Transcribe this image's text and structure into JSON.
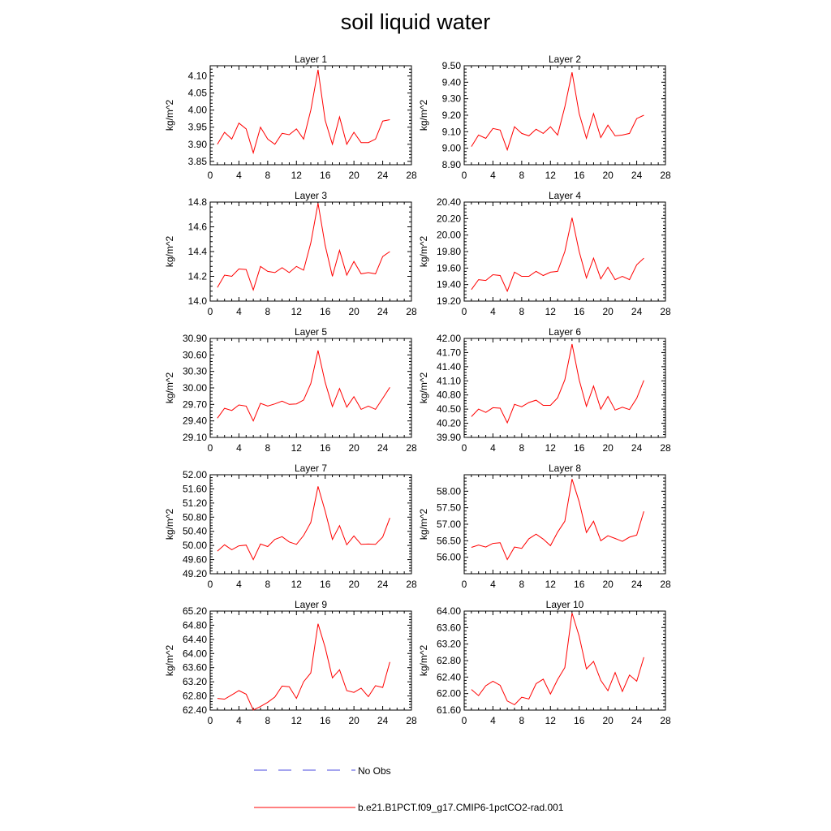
{
  "title": "soil liquid water",
  "colors": {
    "model": "#ff0000",
    "obs": "#4a4adf",
    "axis": "#000000"
  },
  "legend": {
    "obs_label": "No Obs",
    "model_label": "b.e21.B1PCT.f09_g17.CMIP6-1pctCO2-rad.001"
  },
  "chart_data": [
    {
      "type": "line",
      "title": "Layer 1",
      "ylabel": "kg/m^2",
      "xlim": [
        0,
        28
      ],
      "xticks": [
        0,
        4,
        8,
        12,
        16,
        20,
        24,
        28
      ],
      "ylim": [
        3.84,
        4.13
      ],
      "yticks": [
        "3.85",
        "3.90",
        "3.95",
        "4.00",
        "4.05",
        "4.10"
      ],
      "series": [
        {
          "x": [
            1,
            2,
            3,
            4,
            5,
            6,
            7,
            8,
            9,
            10,
            11,
            12,
            13,
            14,
            15,
            16,
            17,
            18,
            19,
            20,
            21,
            22,
            23,
            24,
            25
          ],
          "values": [
            3.9,
            3.935,
            3.915,
            3.962,
            3.945,
            3.875,
            3.95,
            3.915,
            3.9,
            3.932,
            3.928,
            3.945,
            3.915,
            4.0,
            4.118,
            3.97,
            3.9,
            3.98,
            3.9,
            3.935,
            3.905,
            3.905,
            3.915,
            3.968,
            3.972
          ]
        }
      ]
    },
    {
      "type": "line",
      "title": "Layer 2",
      "ylabel": "kg/m^2",
      "xlim": [
        0,
        28
      ],
      "xticks": [
        0,
        4,
        8,
        12,
        16,
        20,
        24,
        28
      ],
      "ylim": [
        8.9,
        9.5
      ],
      "yticks": [
        "8.90",
        "9.00",
        "9.10",
        "9.20",
        "9.30",
        "9.40",
        "9.50"
      ],
      "series": [
        {
          "x": [
            1,
            2,
            3,
            4,
            5,
            6,
            7,
            8,
            9,
            10,
            11,
            12,
            13,
            14,
            15,
            16,
            17,
            18,
            19,
            20,
            21,
            22,
            23,
            24,
            25
          ],
          "values": [
            9.01,
            9.08,
            9.06,
            9.12,
            9.11,
            8.99,
            9.13,
            9.09,
            9.075,
            9.115,
            9.09,
            9.13,
            9.08,
            9.25,
            9.46,
            9.21,
            9.06,
            9.21,
            9.065,
            9.14,
            9.075,
            9.08,
            9.09,
            9.18,
            9.2
          ]
        }
      ]
    },
    {
      "type": "line",
      "title": "Layer 3",
      "ylabel": "kg/m^2",
      "xlim": [
        0,
        28
      ],
      "xticks": [
        0,
        4,
        8,
        12,
        16,
        20,
        24,
        28
      ],
      "ylim": [
        14.0,
        14.8
      ],
      "yticks": [
        "14.0",
        "14.2",
        "14.4",
        "14.6",
        "14.8"
      ],
      "series": [
        {
          "x": [
            1,
            2,
            3,
            4,
            5,
            6,
            7,
            8,
            9,
            10,
            11,
            12,
            13,
            14,
            15,
            16,
            17,
            18,
            19,
            20,
            21,
            22,
            23,
            24,
            25
          ],
          "values": [
            14.11,
            14.21,
            14.2,
            14.26,
            14.255,
            14.09,
            14.28,
            14.24,
            14.23,
            14.27,
            14.23,
            14.28,
            14.25,
            14.47,
            14.79,
            14.45,
            14.2,
            14.41,
            14.21,
            14.32,
            14.22,
            14.23,
            14.22,
            14.36,
            14.4
          ]
        }
      ]
    },
    {
      "type": "line",
      "title": "Layer 4",
      "ylabel": "kg/m^2",
      "xlim": [
        0,
        28
      ],
      "xticks": [
        0,
        4,
        8,
        12,
        16,
        20,
        24,
        28
      ],
      "ylim": [
        19.2,
        20.4
      ],
      "yticks": [
        "19.20",
        "19.40",
        "19.60",
        "19.80",
        "20.00",
        "20.20",
        "20.40"
      ],
      "series": [
        {
          "x": [
            1,
            2,
            3,
            4,
            5,
            6,
            7,
            8,
            9,
            10,
            11,
            12,
            13,
            14,
            15,
            16,
            17,
            18,
            19,
            20,
            21,
            22,
            23,
            24,
            25
          ],
          "values": [
            19.34,
            19.46,
            19.45,
            19.52,
            19.51,
            19.32,
            19.55,
            19.5,
            19.5,
            19.56,
            19.51,
            19.55,
            19.56,
            19.8,
            20.21,
            19.8,
            19.48,
            19.72,
            19.47,
            19.61,
            19.46,
            19.5,
            19.46,
            19.64,
            19.72
          ]
        }
      ]
    },
    {
      "type": "line",
      "title": "Layer 5",
      "ylabel": "kg/m^2",
      "xlim": [
        0,
        28
      ],
      "xticks": [
        0,
        4,
        8,
        12,
        16,
        20,
        24,
        28
      ],
      "ylim": [
        29.1,
        30.9
      ],
      "yticks": [
        "29.10",
        "29.40",
        "29.70",
        "30.00",
        "30.30",
        "30.60",
        "30.90"
      ],
      "series": [
        {
          "x": [
            1,
            2,
            3,
            4,
            5,
            6,
            7,
            8,
            9,
            10,
            11,
            12,
            13,
            14,
            15,
            16,
            17,
            18,
            19,
            20,
            21,
            22,
            23,
            24,
            25
          ],
          "values": [
            29.45,
            29.63,
            29.59,
            29.69,
            29.67,
            29.4,
            29.72,
            29.67,
            29.71,
            29.76,
            29.7,
            29.71,
            29.78,
            30.08,
            30.68,
            30.1,
            29.66,
            29.99,
            29.65,
            29.84,
            29.61,
            29.67,
            29.61,
            29.81,
            30.01
          ]
        }
      ]
    },
    {
      "type": "line",
      "title": "Layer 6",
      "ylabel": "kg/m^2",
      "xlim": [
        0,
        28
      ],
      "xticks": [
        0,
        4,
        8,
        12,
        16,
        20,
        24,
        28
      ],
      "ylim": [
        39.9,
        42.0
      ],
      "yticks": [
        "39.90",
        "40.20",
        "40.50",
        "40.80",
        "41.10",
        "41.40",
        "41.70",
        "42.00"
      ],
      "series": [
        {
          "x": [
            1,
            2,
            3,
            4,
            5,
            6,
            7,
            8,
            9,
            10,
            11,
            12,
            13,
            14,
            15,
            16,
            17,
            18,
            19,
            20,
            21,
            22,
            23,
            24,
            25
          ],
          "values": [
            40.34,
            40.5,
            40.43,
            40.53,
            40.52,
            40.21,
            40.6,
            40.55,
            40.64,
            40.69,
            40.58,
            40.58,
            40.74,
            41.12,
            41.88,
            41.12,
            40.56,
            40.99,
            40.5,
            40.77,
            40.48,
            40.54,
            40.49,
            40.73,
            41.11
          ]
        }
      ]
    },
    {
      "type": "line",
      "title": "Layer 7",
      "ylabel": "kg/m^2",
      "xlim": [
        0,
        28
      ],
      "xticks": [
        0,
        4,
        8,
        12,
        16,
        20,
        24,
        28
      ],
      "ylim": [
        49.2,
        52.0
      ],
      "yticks": [
        "49.20",
        "49.60",
        "50.00",
        "50.40",
        "50.80",
        "51.20",
        "51.60",
        "52.00"
      ],
      "series": [
        {
          "x": [
            1,
            2,
            3,
            4,
            5,
            6,
            7,
            8,
            9,
            10,
            11,
            12,
            13,
            14,
            15,
            16,
            17,
            18,
            19,
            20,
            21,
            22,
            23,
            24,
            25
          ],
          "values": [
            49.84,
            50.02,
            49.88,
            49.99,
            50.01,
            49.6,
            50.04,
            49.97,
            50.17,
            50.25,
            50.1,
            50.03,
            50.28,
            50.65,
            51.67,
            50.97,
            50.17,
            50.56,
            50.02,
            50.27,
            50.03,
            50.04,
            50.03,
            50.24,
            50.78
          ]
        }
      ]
    },
    {
      "type": "line",
      "title": "Layer 8",
      "ylabel": "kg/m^2",
      "xlim": [
        0,
        28
      ],
      "xticks": [
        0,
        4,
        8,
        12,
        16,
        20,
        24,
        28
      ],
      "ylim": [
        55.5,
        58.5
      ],
      "yticks": [
        "56.00",
        "56.50",
        "57.00",
        "57.50",
        "58.00"
      ],
      "series": [
        {
          "x": [
            1,
            2,
            3,
            4,
            5,
            6,
            7,
            8,
            9,
            10,
            11,
            12,
            13,
            14,
            15,
            16,
            17,
            18,
            19,
            20,
            21,
            22,
            23,
            24,
            25
          ],
          "values": [
            56.3,
            56.37,
            56.31,
            56.42,
            56.44,
            55.93,
            56.31,
            56.27,
            56.56,
            56.7,
            56.55,
            56.35,
            56.76,
            57.09,
            58.37,
            57.68,
            56.75,
            57.09,
            56.5,
            56.65,
            56.57,
            56.48,
            56.61,
            56.67,
            57.39
          ]
        }
      ]
    },
    {
      "type": "line",
      "title": "Layer 9",
      "ylabel": "kg/m^2",
      "xlim": [
        0,
        28
      ],
      "xticks": [
        0,
        4,
        8,
        12,
        16,
        20,
        24,
        28
      ],
      "ylim": [
        62.4,
        65.2
      ],
      "yticks": [
        "62.40",
        "62.80",
        "63.20",
        "63.60",
        "64.00",
        "64.40",
        "64.80",
        "65.20"
      ],
      "series": [
        {
          "x": [
            1,
            2,
            3,
            4,
            5,
            6,
            7,
            8,
            9,
            10,
            11,
            12,
            13,
            14,
            15,
            16,
            17,
            18,
            19,
            20,
            21,
            22,
            23,
            24,
            25
          ],
          "values": [
            62.73,
            62.71,
            62.83,
            62.95,
            62.85,
            62.4,
            62.5,
            62.62,
            62.77,
            63.08,
            63.06,
            62.73,
            63.2,
            63.45,
            64.84,
            64.17,
            63.31,
            63.54,
            62.95,
            62.9,
            63.02,
            62.78,
            63.09,
            63.04,
            63.76
          ]
        }
      ]
    },
    {
      "type": "line",
      "title": "Layer 10",
      "ylabel": "kg/m^2",
      "xlim": [
        0,
        28
      ],
      "xticks": [
        0,
        4,
        8,
        12,
        16,
        20,
        24,
        28
      ],
      "ylim": [
        61.6,
        64.0
      ],
      "yticks": [
        "61.60",
        "62.00",
        "62.40",
        "62.80",
        "63.20",
        "63.60",
        "64.00"
      ],
      "series": [
        {
          "x": [
            1,
            2,
            3,
            4,
            5,
            6,
            7,
            8,
            9,
            10,
            11,
            12,
            13,
            14,
            15,
            16,
            17,
            18,
            19,
            20,
            21,
            22,
            23,
            24,
            25
          ],
          "values": [
            62.1,
            61.95,
            62.19,
            62.3,
            62.2,
            61.82,
            61.73,
            61.91,
            61.87,
            62.24,
            62.35,
            61.99,
            62.34,
            62.63,
            63.95,
            63.39,
            62.6,
            62.78,
            62.32,
            62.07,
            62.51,
            62.05,
            62.45,
            62.3,
            62.88
          ]
        }
      ]
    }
  ]
}
